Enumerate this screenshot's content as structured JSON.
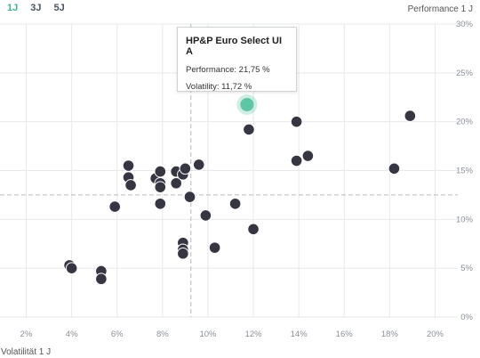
{
  "tabs": [
    {
      "label": "1J",
      "active": true
    },
    {
      "label": "3J",
      "active": false
    },
    {
      "label": "5J",
      "active": false
    }
  ],
  "colors": {
    "accent": "#3bb58a",
    "highlight": "#5dc7a5",
    "point": "#353641",
    "grid": "#e6e8ea",
    "reference": "#b5b9be"
  },
  "tooltip": {
    "title": "HP&P Euro Select UI A",
    "performance_label": "Performance:",
    "performance_value": "21,75 %",
    "volatility_label": "Volatility:",
    "volatility_value": "11,72 %"
  },
  "chart_data": {
    "type": "scatter",
    "xlabel": "Volatilität 1 J",
    "ylabel": "Performance 1 J",
    "xlim": [
      1,
      21
    ],
    "ylim": [
      0,
      30
    ],
    "x_ticks": [
      "2%",
      "4%",
      "6%",
      "8%",
      "10%",
      "12%",
      "14%",
      "16%",
      "18%",
      "20%"
    ],
    "x_tick_values": [
      2,
      4,
      6,
      8,
      10,
      12,
      14,
      16,
      18,
      20
    ],
    "y_ticks": [
      "0%",
      "5%",
      "10%",
      "15%",
      "20%",
      "25%",
      "30%"
    ],
    "y_tick_values": [
      0,
      5,
      10,
      15,
      20,
      25,
      30
    ],
    "reference_lines": {
      "x": 9.25,
      "y": 12.5
    },
    "grid": true,
    "highlight": {
      "x": 11.72,
      "y": 21.75
    },
    "points": [
      {
        "x": 3.9,
        "y": 5.3
      },
      {
        "x": 4.0,
        "y": 5.0
      },
      {
        "x": 5.3,
        "y": 4.7
      },
      {
        "x": 5.3,
        "y": 3.9
      },
      {
        "x": 5.9,
        "y": 11.3
      },
      {
        "x": 6.5,
        "y": 15.5
      },
      {
        "x": 6.5,
        "y": 14.3
      },
      {
        "x": 6.6,
        "y": 13.5
      },
      {
        "x": 7.7,
        "y": 14.2
      },
      {
        "x": 7.9,
        "y": 14.9
      },
      {
        "x": 7.9,
        "y": 13.7
      },
      {
        "x": 7.9,
        "y": 13.3
      },
      {
        "x": 7.9,
        "y": 11.6
      },
      {
        "x": 8.6,
        "y": 14.9
      },
      {
        "x": 8.6,
        "y": 13.7
      },
      {
        "x": 8.9,
        "y": 14.6
      },
      {
        "x": 9.0,
        "y": 15.2
      },
      {
        "x": 9.2,
        "y": 12.3
      },
      {
        "x": 9.6,
        "y": 15.6
      },
      {
        "x": 8.9,
        "y": 7.6
      },
      {
        "x": 8.9,
        "y": 6.9
      },
      {
        "x": 8.9,
        "y": 6.5
      },
      {
        "x": 9.9,
        "y": 10.4
      },
      {
        "x": 10.3,
        "y": 7.1
      },
      {
        "x": 11.2,
        "y": 11.6
      },
      {
        "x": 11.8,
        "y": 19.2
      },
      {
        "x": 12.0,
        "y": 9.0
      },
      {
        "x": 13.9,
        "y": 20.0
      },
      {
        "x": 13.9,
        "y": 16.0
      },
      {
        "x": 14.4,
        "y": 16.5
      },
      {
        "x": 18.2,
        "y": 15.2
      },
      {
        "x": 18.9,
        "y": 20.6
      }
    ]
  }
}
